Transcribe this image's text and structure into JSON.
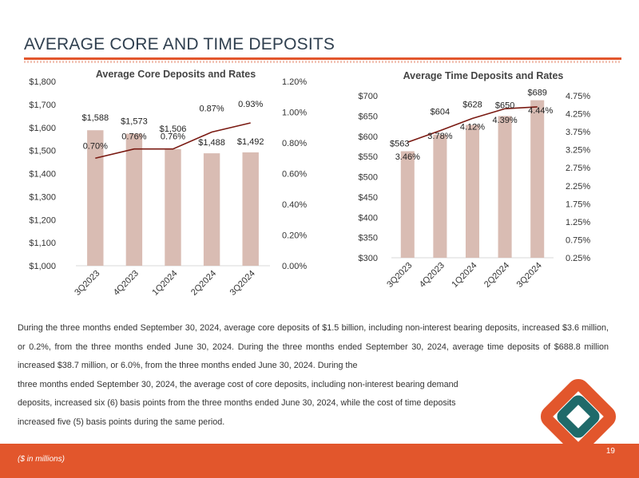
{
  "slide": {
    "title": "AVERAGE CORE AND TIME DEPOSITS",
    "page_number": "19",
    "footnote": "($ in millions)",
    "body_sentences": [
      "During the three months ended September 30, 2024, average core deposits of $1.5 billion, including non-interest bearing deposits, increased $3.6 million, or 0.2%, from the three months ended June 30, 2024. During the three months ended September 30, 2024, average time deposits of $688.8 million increased $38.7 million, or 6.0%, from the three months ended June 30, 2024. During the",
      "three months ended September 30, 2024, the average cost of core deposits, including non-interest bearing demand",
      "deposits, increased six (6) basis points from the three months ended June 30, 2024, while the cost of time deposits",
      "increased five (5) basis points during the same period."
    ],
    "colors": {
      "accent": "#e2562c",
      "bar": "#d9bcb3",
      "line": "#7a1a12",
      "logo_teal": "#1f6a6a"
    }
  },
  "chart_data": [
    {
      "type": "bar",
      "title": "Average Core Deposits and Rates",
      "categories": [
        "3Q2023",
        "4Q2023",
        "1Q2024",
        "2Q2024",
        "3Q2024"
      ],
      "values": [
        1588,
        1573,
        1506,
        1488,
        1492
      ],
      "value_labels": [
        "$1,588",
        "$1,573",
        "$1,506",
        "$1,488",
        "$1,492"
      ],
      "ylim": [
        1000,
        1800
      ],
      "y_ticks": [
        "$1,000",
        "$1,100",
        "$1,200",
        "$1,300",
        "$1,400",
        "$1,500",
        "$1,600",
        "$1,700",
        "$1,800"
      ],
      "line_series": {
        "name": "Rate",
        "values": [
          0.7,
          0.76,
          0.76,
          0.87,
          0.93
        ],
        "labels": [
          "0.70%",
          "0.76%",
          "0.76%",
          "0.87%",
          "0.93%"
        ],
        "ylim": [
          0.0,
          1.2
        ],
        "y_ticks": [
          "0.00%",
          "0.20%",
          "0.40%",
          "0.60%",
          "0.80%",
          "1.00%",
          "1.20%"
        ]
      }
    },
    {
      "type": "bar",
      "title": "Average Time Deposits and Rates",
      "categories": [
        "3Q2023",
        "4Q2023",
        "1Q2024",
        "2Q2024",
        "3Q2024"
      ],
      "values": [
        563,
        604,
        628,
        650,
        689
      ],
      "value_labels": [
        "$563",
        "$604",
        "$628",
        "$650",
        "$689"
      ],
      "ylim": [
        300,
        700
      ],
      "y_ticks": [
        "$300",
        "$350",
        "$400",
        "$450",
        "$500",
        "$550",
        "$600",
        "$650",
        "$700"
      ],
      "line_series": {
        "name": "Rate",
        "values": [
          3.46,
          3.78,
          4.12,
          4.39,
          4.44
        ],
        "labels": [
          "3.46%",
          "3.78%",
          "4.12%",
          "4.39%",
          "4.44%"
        ],
        "ylim": [
          0.25,
          4.75
        ],
        "y_ticks": [
          "0.25%",
          "0.75%",
          "1.25%",
          "1.75%",
          "2.25%",
          "2.75%",
          "3.25%",
          "3.75%",
          "4.25%",
          "4.75%"
        ]
      }
    }
  ]
}
